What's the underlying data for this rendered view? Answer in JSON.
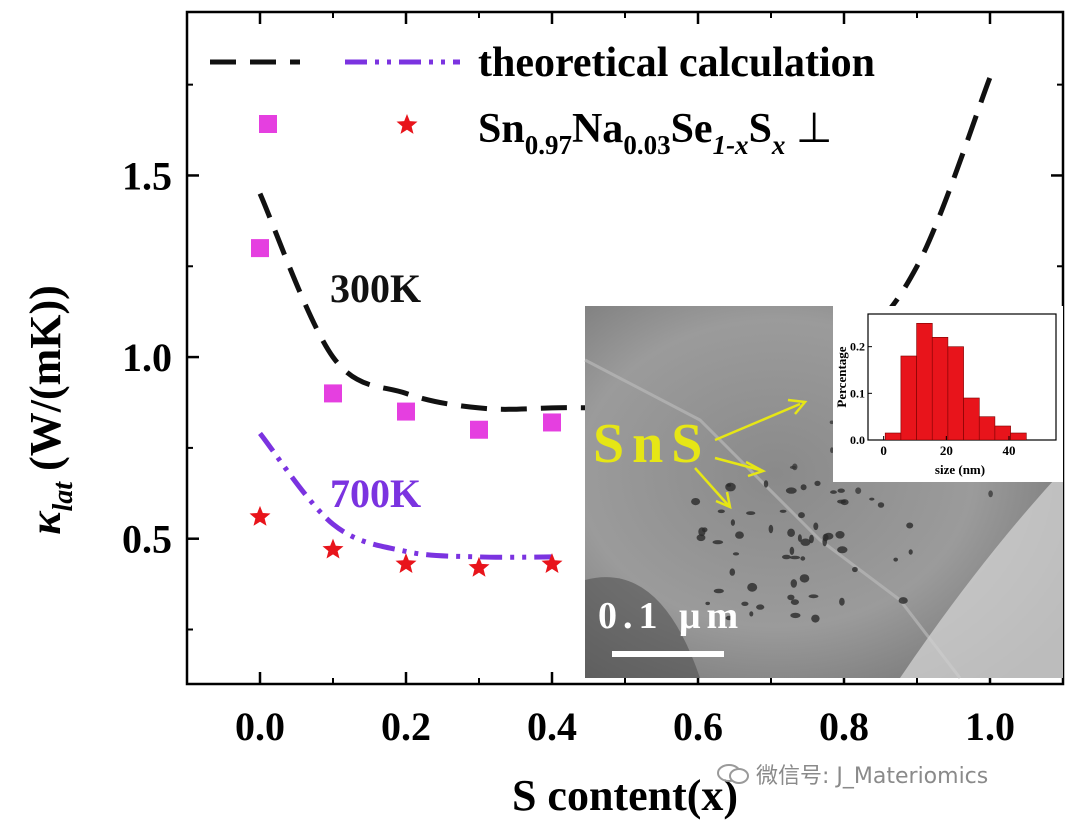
{
  "chart_data": {
    "type": "scatter",
    "xlabel": "S content(x)",
    "ylabel_symbol": "κ",
    "ylabel_subscript": "lat",
    "ylabel_unit": " (W/(mK))",
    "xlim": [
      -0.1,
      1.1
    ],
    "ylim": [
      0.1,
      1.95
    ],
    "x_ticks": [
      0.0,
      0.2,
      0.4,
      0.6,
      0.8,
      1.0
    ],
    "x_tick_labels": [
      "0.0",
      "0.2",
      "0.4",
      "0.6",
      "0.8",
      "1.0"
    ],
    "y_ticks": [
      0.5,
      1.0,
      1.5
    ],
    "y_tick_labels": [
      "0.5",
      "1.0",
      "1.5"
    ],
    "grid": false,
    "legend_position": "top",
    "legend": [
      {
        "label": "theoretical calculation",
        "style": "dashed-and-dashdot"
      },
      {
        "label_parts": [
          "Sn",
          "0.97",
          "Na",
          "0.03",
          "Se",
          "1-x",
          "S",
          "x",
          " ⊥"
        ],
        "style": "square-and-star"
      }
    ],
    "annotations": {
      "t300": "300K",
      "t700": "700K"
    },
    "series": [
      {
        "marker": "square",
        "color": "#e53fe0",
        "x": [
          0.0,
          0.1,
          0.2,
          0.3,
          0.4
        ],
        "y": [
          1.3,
          0.9,
          0.85,
          0.8,
          0.82
        ]
      },
      {
        "marker": "star",
        "color": "#e8141b",
        "x": [
          0.0,
          0.1,
          0.2,
          0.3,
          0.4
        ],
        "y": [
          0.56,
          0.47,
          0.43,
          0.42,
          0.43
        ]
      },
      {
        "line": "dashed",
        "color": "#111111",
        "x": [
          0.0,
          0.1,
          0.2,
          0.3,
          0.4,
          0.6,
          0.8,
          0.9,
          1.0
        ],
        "y": [
          1.45,
          1.0,
          0.9,
          0.86,
          0.86,
          0.88,
          1.03,
          1.25,
          1.77
        ]
      },
      {
        "line": "dashdot",
        "color": "#7b33e0",
        "x": [
          0.0,
          0.1,
          0.2,
          0.3,
          0.4
        ],
        "y": [
          0.79,
          0.54,
          0.465,
          0.45,
          0.45
        ]
      }
    ]
  },
  "inset_tem": {
    "phase_label": "SnS",
    "scale_label": "0.1 μm"
  },
  "inset_histogram": {
    "type": "bar",
    "ylabel": "Percentage",
    "xlabel": "size (nm)",
    "x_ticks": [
      0,
      20,
      40
    ],
    "y_ticks": [
      0.0,
      0.1,
      0.2
    ],
    "y_tick_labels": [
      "0.0",
      "0.1",
      "0.2"
    ],
    "xlim": [
      -5,
      55
    ],
    "ylim": [
      0,
      0.27
    ],
    "bin_centers": [
      3,
      8,
      13,
      18,
      23,
      28,
      33,
      38,
      43
    ],
    "values": [
      0.015,
      0.18,
      0.25,
      0.22,
      0.2,
      0.09,
      0.05,
      0.03,
      0.015
    ]
  },
  "watermark": {
    "text": "微信号: J_Materiomics"
  }
}
